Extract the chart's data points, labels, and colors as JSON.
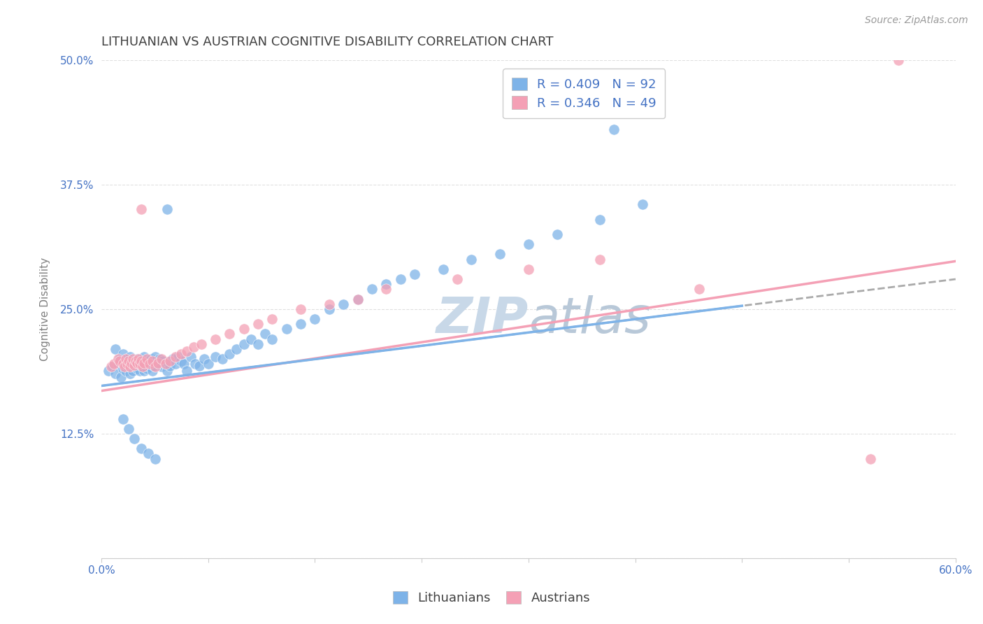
{
  "title": "LITHUANIAN VS AUSTRIAN COGNITIVE DISABILITY CORRELATION CHART",
  "source_text": "Source: ZipAtlas.com",
  "ylabel": "Cognitive Disability",
  "xmin": 0.0,
  "xmax": 0.6,
  "ymin": 0.0,
  "ymax": 0.5,
  "yticks": [
    0.0,
    0.125,
    0.25,
    0.375,
    0.5
  ],
  "ytick_labels": [
    "",
    "12.5%",
    "25.0%",
    "37.5%",
    "50.0%"
  ],
  "xticks": [
    0.0,
    0.075,
    0.15,
    0.225,
    0.3,
    0.375,
    0.45,
    0.525,
    0.6
  ],
  "xtick_labels": [
    "0.0%",
    "",
    "",
    "",
    "",
    "",
    "",
    "",
    "60.0%"
  ],
  "blue_color": "#7EB3E8",
  "pink_color": "#F4A0B5",
  "blue_R": 0.409,
  "blue_N": 92,
  "pink_R": 0.346,
  "pink_N": 49,
  "legend_text_color": "#4472C4",
  "title_color": "#404040",
  "axis_label_color": "#808080",
  "tick_color": "#4472C4",
  "grid_color": "#DDDDDD",
  "watermark_color": "#C8D8E8",
  "blue_scatter_x": [
    0.005,
    0.008,
    0.01,
    0.01,
    0.012,
    0.013,
    0.014,
    0.015,
    0.015,
    0.016,
    0.017,
    0.018,
    0.018,
    0.019,
    0.02,
    0.02,
    0.021,
    0.022,
    0.022,
    0.023,
    0.024,
    0.025,
    0.025,
    0.026,
    0.027,
    0.028,
    0.028,
    0.029,
    0.03,
    0.03,
    0.031,
    0.032,
    0.033,
    0.034,
    0.035,
    0.035,
    0.036,
    0.037,
    0.038,
    0.038,
    0.04,
    0.041,
    0.042,
    0.043,
    0.045,
    0.046,
    0.048,
    0.05,
    0.052,
    0.054,
    0.056,
    0.058,
    0.06,
    0.063,
    0.066,
    0.069,
    0.072,
    0.075,
    0.08,
    0.085,
    0.09,
    0.095,
    0.1,
    0.105,
    0.11,
    0.115,
    0.12,
    0.13,
    0.14,
    0.15,
    0.16,
    0.17,
    0.18,
    0.19,
    0.2,
    0.21,
    0.22,
    0.24,
    0.26,
    0.28,
    0.3,
    0.32,
    0.35,
    0.38,
    0.015,
    0.019,
    0.023,
    0.028,
    0.033,
    0.038,
    0.046,
    0.36
  ],
  "blue_scatter_y": [
    0.188,
    0.192,
    0.21,
    0.185,
    0.195,
    0.2,
    0.182,
    0.19,
    0.205,
    0.195,
    0.188,
    0.193,
    0.2,
    0.197,
    0.185,
    0.202,
    0.195,
    0.188,
    0.198,
    0.192,
    0.196,
    0.19,
    0.2,
    0.195,
    0.188,
    0.193,
    0.2,
    0.195,
    0.188,
    0.202,
    0.195,
    0.19,
    0.198,
    0.192,
    0.195,
    0.2,
    0.188,
    0.193,
    0.197,
    0.202,
    0.195,
    0.2,
    0.192,
    0.198,
    0.195,
    0.188,
    0.193,
    0.2,
    0.195,
    0.202,
    0.198,
    0.195,
    0.188,
    0.202,
    0.195,
    0.193,
    0.2,
    0.195,
    0.202,
    0.2,
    0.205,
    0.21,
    0.215,
    0.22,
    0.215,
    0.225,
    0.22,
    0.23,
    0.235,
    0.24,
    0.25,
    0.255,
    0.26,
    0.27,
    0.275,
    0.28,
    0.285,
    0.29,
    0.3,
    0.305,
    0.315,
    0.325,
    0.34,
    0.355,
    0.14,
    0.13,
    0.12,
    0.11,
    0.105,
    0.1,
    0.35,
    0.43
  ],
  "pink_scatter_x": [
    0.007,
    0.009,
    0.012,
    0.013,
    0.015,
    0.016,
    0.017,
    0.018,
    0.019,
    0.02,
    0.021,
    0.022,
    0.023,
    0.024,
    0.025,
    0.026,
    0.027,
    0.028,
    0.029,
    0.03,
    0.032,
    0.034,
    0.036,
    0.038,
    0.04,
    0.042,
    0.045,
    0.048,
    0.052,
    0.056,
    0.06,
    0.065,
    0.07,
    0.08,
    0.09,
    0.1,
    0.11,
    0.12,
    0.14,
    0.16,
    0.18,
    0.2,
    0.25,
    0.3,
    0.35,
    0.42,
    0.028,
    0.54,
    0.56
  ],
  "pink_scatter_y": [
    0.192,
    0.195,
    0.2,
    0.198,
    0.195,
    0.192,
    0.2,
    0.195,
    0.198,
    0.192,
    0.196,
    0.2,
    0.194,
    0.198,
    0.196,
    0.2,
    0.195,
    0.198,
    0.192,
    0.196,
    0.2,
    0.195,
    0.198,
    0.192,
    0.196,
    0.2,
    0.195,
    0.198,
    0.202,
    0.205,
    0.208,
    0.212,
    0.215,
    0.22,
    0.225,
    0.23,
    0.235,
    0.24,
    0.25,
    0.255,
    0.26,
    0.27,
    0.28,
    0.29,
    0.3,
    0.27,
    0.35,
    0.1,
    0.5
  ],
  "blue_line_y_start": 0.173,
  "blue_line_y_end": 0.28,
  "pink_line_y_start": 0.168,
  "pink_line_y_end": 0.298
}
